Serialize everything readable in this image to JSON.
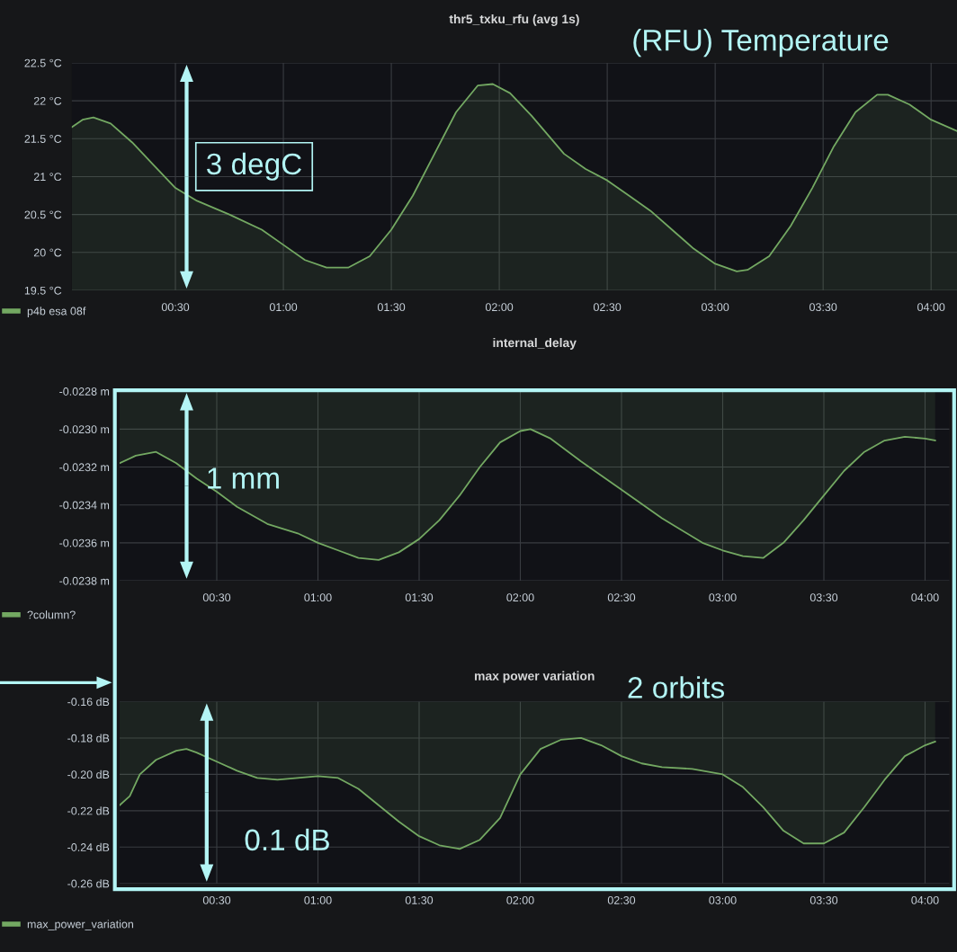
{
  "chart_data": [
    {
      "type": "area",
      "title": "thr5_txku_rfu (avg 1s)",
      "xlim": [
        0.02,
        4.12
      ],
      "xticks": [
        {
          "value": 0.5,
          "label": "00:30"
        },
        {
          "value": 1.0,
          "label": "01:00"
        },
        {
          "value": 1.5,
          "label": "01:30"
        },
        {
          "value": 2.0,
          "label": "02:00"
        },
        {
          "value": 2.5,
          "label": "02:30"
        },
        {
          "value": 3.0,
          "label": "03:00"
        },
        {
          "value": 3.5,
          "label": "03:30"
        },
        {
          "value": 4.0,
          "label": "04:00"
        }
      ],
      "ylim": [
        19.5,
        22.5
      ],
      "yticks": [
        {
          "value": 19.5,
          "label": "19.5 °C"
        },
        {
          "value": 20,
          "label": "20 °C"
        },
        {
          "value": 20.5,
          "label": "20.5 °C"
        },
        {
          "value": 21,
          "label": "21 °C"
        },
        {
          "value": 21.5,
          "label": "21.5 °C"
        },
        {
          "value": 22,
          "label": "22 °C"
        },
        {
          "value": 22.5,
          "label": "22.5 °C"
        }
      ],
      "grid": true,
      "legend": "bottom left",
      "annotations": [
        "(RFU) Temperature",
        "3 degC"
      ],
      "x": [
        0.02,
        0.07,
        0.12,
        0.2,
        0.3,
        0.4,
        0.5,
        0.6,
        0.75,
        0.9,
        1.0,
        1.1,
        1.2,
        1.3,
        1.4,
        1.5,
        1.6,
        1.7,
        1.8,
        1.9,
        1.97,
        2.05,
        2.15,
        2.3,
        2.4,
        2.5,
        2.6,
        2.7,
        2.8,
        2.9,
        3.0,
        3.1,
        3.15,
        3.25,
        3.35,
        3.45,
        3.55,
        3.65,
        3.75,
        3.8,
        3.9,
        4.0,
        4.12
      ],
      "series": [
        {
          "name": "p4b esa 08f",
          "color": "#73a862",
          "values": [
            21.65,
            21.75,
            21.78,
            21.7,
            21.45,
            21.15,
            20.85,
            20.68,
            20.5,
            20.3,
            20.1,
            19.9,
            19.8,
            19.8,
            19.95,
            20.3,
            20.75,
            21.3,
            21.85,
            22.2,
            22.22,
            22.1,
            21.8,
            21.3,
            21.1,
            20.95,
            20.75,
            20.55,
            20.3,
            20.05,
            19.85,
            19.75,
            19.77,
            19.95,
            20.35,
            20.85,
            21.4,
            21.85,
            22.08,
            22.08,
            21.95,
            21.75,
            21.6
          ]
        }
      ]
    },
    {
      "type": "area",
      "title": "internal_delay",
      "xlim": [
        0.02,
        4.12
      ],
      "xticks": [
        {
          "value": 0.5,
          "label": "00:30"
        },
        {
          "value": 1.0,
          "label": "01:00"
        },
        {
          "value": 1.5,
          "label": "01:30"
        },
        {
          "value": 2.0,
          "label": "02:00"
        },
        {
          "value": 2.5,
          "label": "02:30"
        },
        {
          "value": 3.0,
          "label": "03:00"
        },
        {
          "value": 3.5,
          "label": "03:30"
        },
        {
          "value": 4.0,
          "label": "04:00"
        }
      ],
      "ylim": [
        -0.0238,
        -0.0228
      ],
      "yticks": [
        {
          "value": -0.0238,
          "label": "-0.0238 m"
        },
        {
          "value": -0.0236,
          "label": "-0.0236 m"
        },
        {
          "value": -0.0234,
          "label": "-0.0234 m"
        },
        {
          "value": -0.0232,
          "label": "-0.0232 m"
        },
        {
          "value": -0.023,
          "label": "-0.0230 m"
        },
        {
          "value": -0.0228,
          "label": "-0.0228 m"
        }
      ],
      "grid": true,
      "legend": "bottom left",
      "annotations": [
        "1 mm"
      ],
      "x": [
        0.02,
        0.1,
        0.2,
        0.3,
        0.4,
        0.5,
        0.6,
        0.75,
        0.9,
        1.0,
        1.1,
        1.2,
        1.3,
        1.4,
        1.5,
        1.6,
        1.7,
        1.8,
        1.9,
        2.0,
        2.05,
        2.15,
        2.3,
        2.5,
        2.7,
        2.9,
        3.0,
        3.1,
        3.2,
        3.3,
        3.4,
        3.5,
        3.6,
        3.7,
        3.8,
        3.9,
        4.0,
        4.05
      ],
      "series": [
        {
          "name": "?column?",
          "color": "#73a862",
          "values": [
            -0.02318,
            -0.02314,
            -0.02312,
            -0.02318,
            -0.02326,
            -0.02333,
            -0.02341,
            -0.0235,
            -0.02355,
            -0.0236,
            -0.02364,
            -0.02368,
            -0.02369,
            -0.02365,
            -0.02358,
            -0.02348,
            -0.02335,
            -0.0232,
            -0.02307,
            -0.02301,
            -0.023,
            -0.02305,
            -0.02317,
            -0.02332,
            -0.02347,
            -0.0236,
            -0.02364,
            -0.02367,
            -0.02368,
            -0.0236,
            -0.02348,
            -0.02335,
            -0.02322,
            -0.02312,
            -0.02306,
            -0.02304,
            -0.02305,
            -0.02306
          ]
        }
      ]
    },
    {
      "type": "area",
      "title": "max power variation",
      "xlim": [
        0.02,
        4.12
      ],
      "xticks": [
        {
          "value": 0.5,
          "label": "00:30"
        },
        {
          "value": 1.0,
          "label": "01:00"
        },
        {
          "value": 1.5,
          "label": "01:30"
        },
        {
          "value": 2.0,
          "label": "02:00"
        },
        {
          "value": 2.5,
          "label": "02:30"
        },
        {
          "value": 3.0,
          "label": "03:00"
        },
        {
          "value": 3.5,
          "label": "03:30"
        },
        {
          "value": 4.0,
          "label": "04:00"
        }
      ],
      "ylim": [
        -0.26,
        -0.16
      ],
      "yticks": [
        {
          "value": -0.26,
          "label": "-0.26 dB"
        },
        {
          "value": -0.24,
          "label": "-0.24 dB"
        },
        {
          "value": -0.22,
          "label": "-0.22 dB"
        },
        {
          "value": -0.2,
          "label": "-0.20 dB"
        },
        {
          "value": -0.18,
          "label": "-0.18 dB"
        },
        {
          "value": -0.16,
          "label": "-0.16 dB"
        }
      ],
      "grid": true,
      "legend": "bottom left",
      "annotations": [
        "2 orbits",
        "0.1 dB"
      ],
      "x": [
        0.02,
        0.07,
        0.12,
        0.2,
        0.3,
        0.35,
        0.4,
        0.5,
        0.6,
        0.7,
        0.8,
        0.9,
        1.0,
        1.1,
        1.2,
        1.3,
        1.4,
        1.5,
        1.6,
        1.7,
        1.8,
        1.9,
        2.0,
        2.1,
        2.2,
        2.3,
        2.4,
        2.5,
        2.6,
        2.7,
        2.85,
        3.0,
        3.1,
        3.2,
        3.3,
        3.4,
        3.5,
        3.6,
        3.7,
        3.8,
        3.9,
        4.0,
        4.05
      ],
      "series": [
        {
          "name": "max_power_variation",
          "color": "#73a862",
          "values": [
            -0.217,
            -0.212,
            -0.2,
            -0.192,
            -0.187,
            -0.186,
            -0.188,
            -0.193,
            -0.198,
            -0.202,
            -0.203,
            -0.202,
            -0.201,
            -0.202,
            -0.208,
            -0.217,
            -0.226,
            -0.234,
            -0.239,
            -0.241,
            -0.236,
            -0.224,
            -0.2,
            -0.186,
            -0.181,
            -0.18,
            -0.184,
            -0.19,
            -0.194,
            -0.196,
            -0.197,
            -0.2,
            -0.207,
            -0.218,
            -0.231,
            -0.238,
            -0.238,
            -0.232,
            -0.218,
            -0.203,
            -0.19,
            -0.184,
            -0.182
          ]
        }
      ]
    }
  ]
}
